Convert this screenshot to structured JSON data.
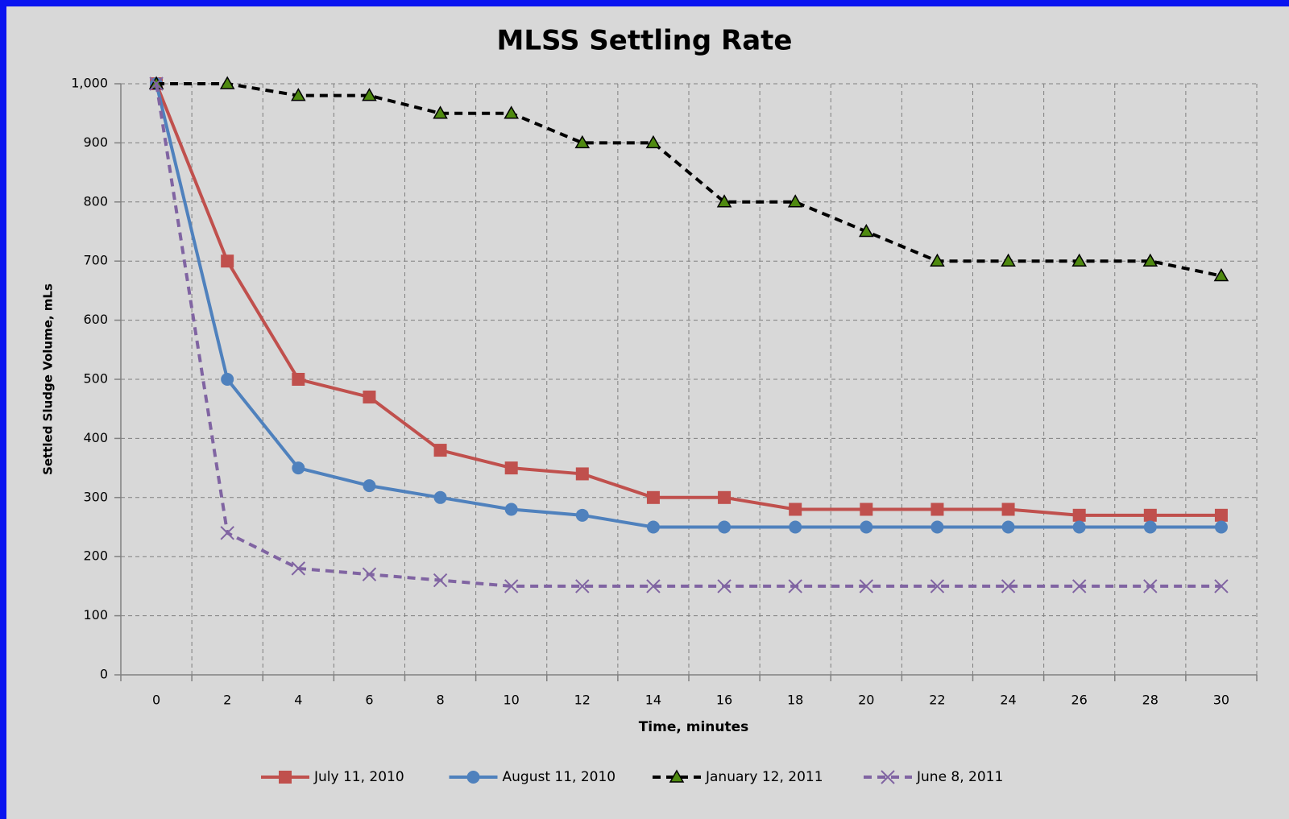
{
  "chart_data": {
    "type": "line",
    "title": "MLSS Settling Rate",
    "x_label": "Time, minutes",
    "y_label": "Settled Sludge Volume, mLs",
    "categories": [
      "0",
      "2",
      "4",
      "6",
      "8",
      "10",
      "12",
      "14",
      "16",
      "18",
      "20",
      "22",
      "24",
      "26",
      "28",
      "30"
    ],
    "ylim": [
      0,
      1000
    ],
    "yticks": [
      0,
      100,
      200,
      300,
      400,
      500,
      600,
      700,
      800,
      900,
      {
        "value": 1000,
        "label": "1,000"
      }
    ],
    "grid": true,
    "legend": "bottom",
    "series": [
      {
        "name": "July 11, 2010",
        "color": "#c0504d",
        "marker": "square",
        "dashed": false,
        "values": [
          1000,
          700,
          500,
          470,
          380,
          350,
          340,
          300,
          300,
          280,
          280,
          280,
          280,
          270,
          270,
          270
        ]
      },
      {
        "name": "August 11, 2010",
        "color": "#4f81bd",
        "marker": "circle",
        "dashed": false,
        "values": [
          1000,
          500,
          350,
          320,
          300,
          280,
          270,
          250,
          250,
          250,
          250,
          250,
          250,
          250,
          250,
          250
        ]
      },
      {
        "name": "January 12, 2011",
        "color": "#000000",
        "marker_fill": "#4f8a10",
        "marker": "triangle",
        "dashed": true,
        "values": [
          1000,
          1000,
          980,
          980,
          950,
          950,
          900,
          900,
          800,
          800,
          750,
          700,
          700,
          700,
          700,
          675
        ]
      },
      {
        "name": "June 8, 2011",
        "color": "#8064a2",
        "marker": "x",
        "dashed": true,
        "values": [
          1000,
          240,
          180,
          170,
          160,
          150,
          150,
          150,
          150,
          150,
          150,
          150,
          150,
          150,
          150,
          150
        ]
      }
    ]
  }
}
